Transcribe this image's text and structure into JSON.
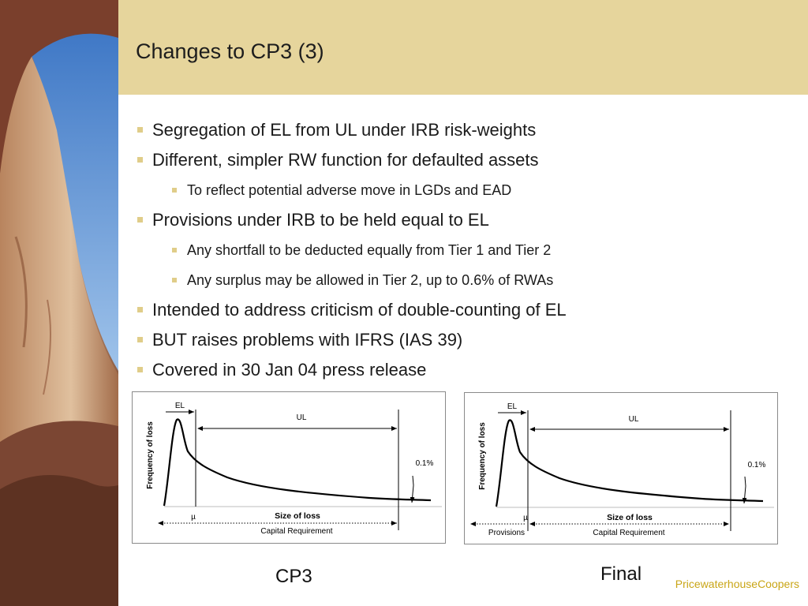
{
  "slide": {
    "title": "Changes to CP3 (3)",
    "brand": "PricewaterhouseCoopers",
    "colors": {
      "header_band": "#e6d59c",
      "bullet_marker": "#e0cd89",
      "brand_text": "#c9a516"
    }
  },
  "bullets": [
    {
      "level": 1,
      "text": "Segregation of EL from UL under IRB risk-weights"
    },
    {
      "level": 1,
      "text": "Different, simpler RW function for defaulted assets"
    },
    {
      "level": 2,
      "text": "To reflect potential adverse move in LGDs and EAD"
    },
    {
      "level": 1,
      "text": "Provisions under IRB to be held equal to EL"
    },
    {
      "level": 2,
      "text": "Any shortfall to be deducted equally from Tier 1 and Tier 2"
    },
    {
      "level": 2,
      "text": "Any surplus may be allowed in Tier 2, up to 0.6% of RWAs"
    },
    {
      "level": 1,
      "text": "Intended to address criticism of double-counting of EL"
    },
    {
      "level": 1,
      "text": "BUT raises problems with IFRS (IAS 39)"
    },
    {
      "level": 1,
      "text": "Covered in 30 Jan 04 press release"
    }
  ],
  "diagrams": {
    "left": {
      "caption": "CP3",
      "el_label": "EL",
      "ul_label": "UL",
      "ylabel": "Frequency of loss",
      "xlabel": "Size of loss",
      "mu_label": "µ",
      "tail_label": "0.1%",
      "capital_label": "Capital Requirement"
    },
    "right": {
      "caption": "Final",
      "el_label": "EL",
      "ul_label": "UL",
      "ylabel": "Frequency of loss",
      "xlabel": "Size of loss",
      "mu_label": "µ",
      "tail_label": "0.1%",
      "capital_label": "Capital Requirement",
      "provisions_label": "Provisions"
    }
  }
}
